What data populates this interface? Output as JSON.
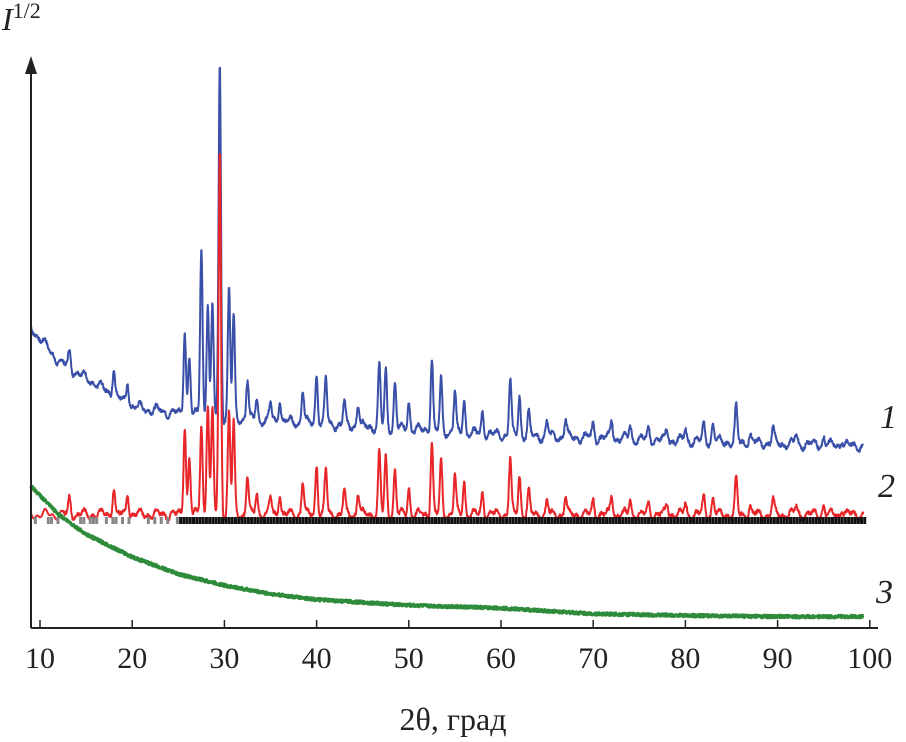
{
  "chart_data": {
    "type": "line",
    "title": "",
    "xlabel": "2θ, град",
    "ylabel_main": "I",
    "ylabel_sup": "1/2",
    "xlim": [
      9,
      100
    ],
    "ylim": [
      0,
      100
    ],
    "xticks": [
      10,
      20,
      30,
      40,
      50,
      60,
      70,
      80,
      90,
      100
    ],
    "series": [
      {
        "name": "1",
        "label": "1",
        "color": "#3a4fa8",
        "baseline": [
          [
            9,
            53
          ],
          [
            12,
            47
          ],
          [
            15,
            44
          ],
          [
            20,
            39
          ],
          [
            24,
            38
          ],
          [
            30,
            37
          ],
          [
            40,
            36
          ],
          [
            60,
            34
          ],
          [
            80,
            33
          ],
          [
            100,
            32
          ]
        ],
        "peaks": [
          [
            13.2,
            3
          ],
          [
            18,
            5
          ],
          [
            19.5,
            4
          ],
          [
            25.7,
            15
          ],
          [
            26.2,
            10
          ],
          [
            27.5,
            30
          ],
          [
            28.2,
            20
          ],
          [
            28.7,
            19
          ],
          [
            29.5,
            62
          ],
          [
            30.5,
            23
          ],
          [
            31,
            18
          ],
          [
            32.5,
            7
          ],
          [
            33.5,
            4
          ],
          [
            35,
            3
          ],
          [
            36,
            4
          ],
          [
            38.5,
            6
          ],
          [
            40,
            9
          ],
          [
            41,
            8
          ],
          [
            43,
            4
          ],
          [
            44.5,
            4
          ],
          [
            46.8,
            11
          ],
          [
            47.5,
            10
          ],
          [
            48.5,
            8
          ],
          [
            50,
            5
          ],
          [
            52.5,
            13
          ],
          [
            53.5,
            9
          ],
          [
            55,
            7
          ],
          [
            56,
            6
          ],
          [
            58,
            4
          ],
          [
            61,
            10
          ],
          [
            62,
            7
          ],
          [
            63,
            4
          ],
          [
            65,
            2.5
          ],
          [
            67,
            3
          ],
          [
            70,
            2.5
          ],
          [
            72,
            3.5
          ],
          [
            74,
            2.5
          ],
          [
            76,
            2
          ],
          [
            78,
            2
          ],
          [
            80,
            2
          ],
          [
            82,
            3
          ],
          [
            83,
            3
          ],
          [
            85.5,
            6
          ],
          [
            87,
            1.5
          ],
          [
            89.5,
            2.5
          ],
          [
            92,
            1.5
          ],
          [
            95,
            1.5
          ],
          [
            97,
            1
          ]
        ]
      },
      {
        "name": "2",
        "label": "2",
        "color": "#e8262a",
        "baseline": [
          [
            9,
            20
          ],
          [
            100,
            20
          ]
        ],
        "peaks": [
          [
            13.2,
            3
          ],
          [
            18,
            5
          ],
          [
            19.5,
            4
          ],
          [
            25.7,
            16
          ],
          [
            26.2,
            10
          ],
          [
            27.5,
            16
          ],
          [
            28.2,
            20
          ],
          [
            28.7,
            18
          ],
          [
            29.5,
            64
          ],
          [
            30.5,
            18
          ],
          [
            31,
            16
          ],
          [
            32.5,
            7
          ],
          [
            33.5,
            4
          ],
          [
            35,
            3
          ],
          [
            36,
            4
          ],
          [
            38.5,
            6
          ],
          [
            40,
            9
          ],
          [
            41,
            8
          ],
          [
            43,
            4
          ],
          [
            44.5,
            4
          ],
          [
            46.8,
            11
          ],
          [
            47.5,
            10
          ],
          [
            48.5,
            8
          ],
          [
            50,
            5
          ],
          [
            52.5,
            13
          ],
          [
            53.5,
            9
          ],
          [
            55,
            7
          ],
          [
            56,
            6
          ],
          [
            58,
            4
          ],
          [
            61,
            10
          ],
          [
            62,
            7
          ],
          [
            63,
            4
          ],
          [
            65,
            2.5
          ],
          [
            67,
            3
          ],
          [
            70,
            2.5
          ],
          [
            72,
            3.5
          ],
          [
            74,
            2.5
          ],
          [
            76,
            2
          ],
          [
            78,
            2
          ],
          [
            80,
            2
          ],
          [
            82,
            3
          ],
          [
            83,
            3
          ],
          [
            85.5,
            6
          ],
          [
            87,
            1.5
          ],
          [
            89.5,
            2.5
          ],
          [
            92,
            1.5
          ],
          [
            95,
            1.5
          ],
          [
            97,
            1
          ]
        ]
      },
      {
        "name": "3",
        "label": "3",
        "color": "#2e8b3a",
        "points": [
          [
            9,
            25
          ],
          [
            12,
            20
          ],
          [
            15,
            16.5
          ],
          [
            20,
            12.5
          ],
          [
            25,
            9.5
          ],
          [
            30,
            7.5
          ],
          [
            35,
            6
          ],
          [
            40,
            5
          ],
          [
            50,
            4
          ],
          [
            60,
            3.5
          ],
          [
            70,
            2.5
          ],
          [
            80,
            2.2
          ],
          [
            90,
            2
          ],
          [
            100,
            2
          ]
        ]
      }
    ],
    "bragg_positions": {
      "start": 9.5,
      "end": 99.5,
      "step": 0.35,
      "color": "#111111"
    }
  }
}
